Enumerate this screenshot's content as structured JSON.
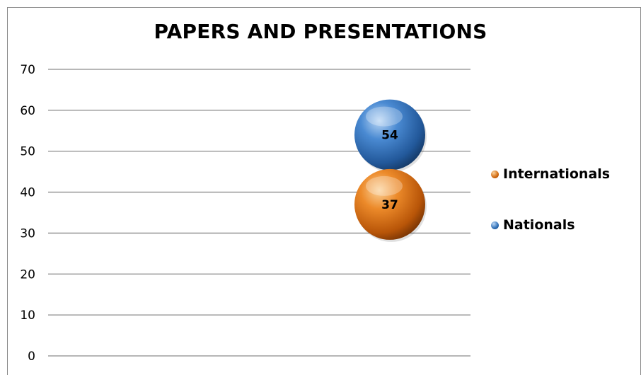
{
  "chart_data": {
    "type": "bubble",
    "title": "PAPERS AND PRESENTATIONS",
    "xlabel": "",
    "ylabel": "",
    "ylim": [
      0,
      70
    ],
    "yticks": [
      "0",
      "10",
      "20",
      "30",
      "40",
      "50",
      "60",
      "70"
    ],
    "grid": true,
    "legend_position": "right",
    "series": [
      {
        "name": "Internationals",
        "values": [
          37
        ],
        "color": "#d2690f"
      },
      {
        "name": "Nationals",
        "values": [
          54
        ],
        "color": "#2e6eb5"
      }
    ]
  }
}
